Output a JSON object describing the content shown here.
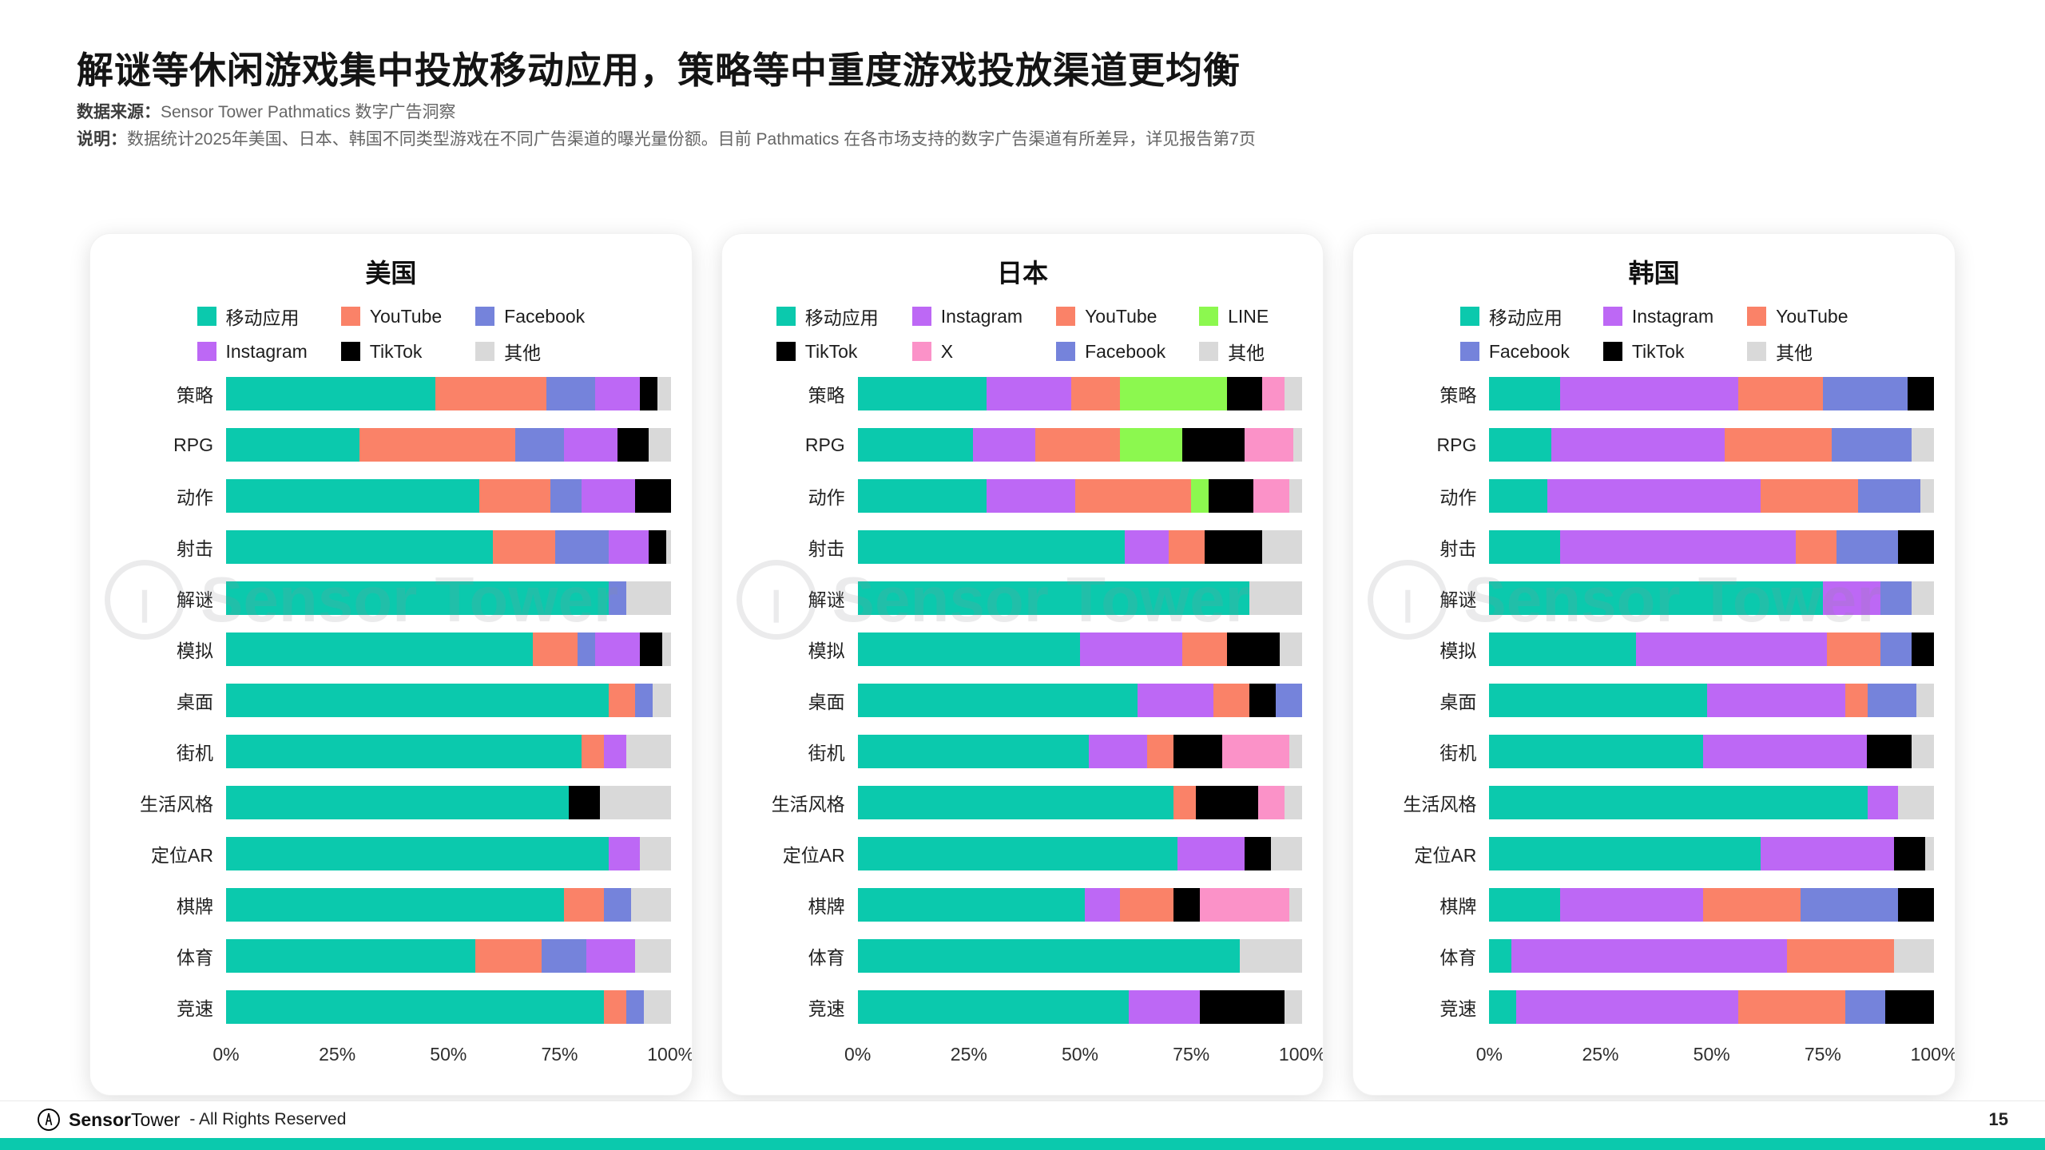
{
  "page": {
    "title": "解谜等休闲游戏集中投放移动应用，策略等中重度游戏投放渠道更均衡",
    "source_label": "数据来源：",
    "source_text": "Sensor Tower Pathmatics 数字广告洞察",
    "note_label": "说明：",
    "note_text": "数据统计2025年美国、日本、韩国不同类型游戏在不同广告渠道的曝光量份额。目前 Pathmatics 在各市场支持的数字广告渠道有所差异，详见报告第7页",
    "watermark": "Sensor Tower",
    "footer": {
      "brand_bold": "Sensor",
      "brand_light": "Tower",
      "rights": "- All Rights Reserved",
      "page_number": "15"
    }
  },
  "colors": {
    "accent_teal": "#0bc9ad",
    "移动应用": "#0bc9ad",
    "YouTube": "#fa8268",
    "Facebook": "#7583db",
    "Instagram": "#bd68f5",
    "TikTok": "#000000",
    "LINE": "#8cf84f",
    "X": "#fb92c8",
    "其他": "#d9d9d9"
  },
  "chart_data": [
    {
      "type": "bar",
      "orientation": "horizontal",
      "stacked": true,
      "title": "美国",
      "xlabel": "",
      "ylabel": "",
      "xlim": [
        0,
        100
      ],
      "x_ticks": [
        "0%",
        "25%",
        "50%",
        "75%",
        "100%"
      ],
      "legend_rows": [
        [
          "移动应用",
          "YouTube",
          "Facebook"
        ],
        [
          "Instagram",
          "TikTok",
          "其他"
        ]
      ],
      "categories": [
        "策略",
        "RPG",
        "动作",
        "射击",
        "解谜",
        "模拟",
        "桌面",
        "街机",
        "生活风格",
        "定位AR",
        "棋牌",
        "体育",
        "竞速"
      ],
      "series": [
        {
          "name": "移动应用",
          "color": "#0bc9ad",
          "values": [
            47,
            30,
            57,
            60,
            86,
            69,
            86,
            80,
            77,
            86,
            76,
            56,
            85
          ]
        },
        {
          "name": "YouTube",
          "color": "#fa8268",
          "values": [
            25,
            35,
            16,
            14,
            0,
            10,
            6,
            5,
            0,
            0,
            9,
            15,
            5
          ]
        },
        {
          "name": "Facebook",
          "color": "#7583db",
          "values": [
            11,
            11,
            7,
            12,
            4,
            4,
            4,
            0,
            0,
            0,
            6,
            10,
            4
          ]
        },
        {
          "name": "Instagram",
          "color": "#bd68f5",
          "values": [
            10,
            12,
            12,
            9,
            0,
            10,
            0,
            5,
            0,
            7,
            0,
            11,
            0
          ]
        },
        {
          "name": "TikTok",
          "color": "#000000",
          "values": [
            4,
            7,
            8,
            4,
            0,
            5,
            0,
            0,
            7,
            0,
            0,
            0,
            0
          ]
        },
        {
          "name": "其他",
          "color": "#d9d9d9",
          "values": [
            3,
            5,
            0,
            1,
            10,
            2,
            4,
            10,
            16,
            7,
            9,
            8,
            6
          ]
        }
      ]
    },
    {
      "type": "bar",
      "orientation": "horizontal",
      "stacked": true,
      "title": "日本",
      "xlabel": "",
      "ylabel": "",
      "xlim": [
        0,
        100
      ],
      "x_ticks": [
        "0%",
        "25%",
        "50%",
        "75%",
        "100%"
      ],
      "legend_rows": [
        [
          "移动应用",
          "Instagram",
          "YouTube",
          "LINE"
        ],
        [
          "TikTok",
          "X",
          "Facebook",
          "其他"
        ]
      ],
      "categories": [
        "策略",
        "RPG",
        "动作",
        "射击",
        "解谜",
        "模拟",
        "桌面",
        "街机",
        "生活风格",
        "定位AR",
        "棋牌",
        "体育",
        "竞速"
      ],
      "series": [
        {
          "name": "移动应用",
          "color": "#0bc9ad",
          "values": [
            29,
            26,
            29,
            60,
            88,
            50,
            63,
            52,
            71,
            72,
            51,
            86,
            61
          ]
        },
        {
          "name": "Instagram",
          "color": "#bd68f5",
          "values": [
            19,
            14,
            20,
            10,
            0,
            23,
            17,
            13,
            0,
            15,
            8,
            0,
            16
          ]
        },
        {
          "name": "YouTube",
          "color": "#fa8268",
          "values": [
            11,
            19,
            26,
            8,
            0,
            10,
            8,
            6,
            5,
            0,
            12,
            0,
            0
          ]
        },
        {
          "name": "LINE",
          "color": "#8cf84f",
          "values": [
            24,
            14,
            4,
            0,
            0,
            0,
            0,
            0,
            0,
            0,
            0,
            0,
            0
          ]
        },
        {
          "name": "TikTok",
          "color": "#000000",
          "values": [
            8,
            14,
            10,
            13,
            0,
            12,
            6,
            11,
            14,
            6,
            6,
            0,
            19
          ]
        },
        {
          "name": "X",
          "color": "#fb92c8",
          "values": [
            5,
            11,
            8,
            0,
            0,
            0,
            0,
            15,
            6,
            0,
            20,
            0,
            0
          ]
        },
        {
          "name": "Facebook",
          "color": "#7583db",
          "values": [
            0,
            0,
            0,
            0,
            0,
            0,
            6,
            0,
            0,
            0,
            0,
            0,
            0
          ]
        },
        {
          "name": "其他",
          "color": "#d9d9d9",
          "values": [
            4,
            2,
            3,
            9,
            12,
            5,
            0,
            3,
            4,
            7,
            3,
            14,
            4
          ]
        }
      ]
    },
    {
      "type": "bar",
      "orientation": "horizontal",
      "stacked": true,
      "title": "韩国",
      "xlabel": "",
      "ylabel": "",
      "xlim": [
        0,
        100
      ],
      "x_ticks": [
        "0%",
        "25%",
        "50%",
        "75%",
        "100%"
      ],
      "legend_rows": [
        [
          "移动应用",
          "Instagram",
          "YouTube"
        ],
        [
          "Facebook",
          "TikTok",
          "其他"
        ]
      ],
      "categories": [
        "策略",
        "RPG",
        "动作",
        "射击",
        "解谜",
        "模拟",
        "桌面",
        "街机",
        "生活风格",
        "定位AR",
        "棋牌",
        "体育",
        "竞速"
      ],
      "series": [
        {
          "name": "移动应用",
          "color": "#0bc9ad",
          "values": [
            16,
            14,
            13,
            16,
            75,
            33,
            49,
            48,
            85,
            61,
            16,
            5,
            6
          ]
        },
        {
          "name": "Instagram",
          "color": "#bd68f5",
          "values": [
            40,
            39,
            48,
            53,
            13,
            43,
            31,
            37,
            7,
            30,
            32,
            62,
            50
          ]
        },
        {
          "name": "YouTube",
          "color": "#fa8268",
          "values": [
            19,
            24,
            22,
            9,
            0,
            12,
            5,
            0,
            0,
            0,
            22,
            24,
            24
          ]
        },
        {
          "name": "Facebook",
          "color": "#7583db",
          "values": [
            19,
            18,
            14,
            14,
            7,
            7,
            11,
            0,
            0,
            0,
            22,
            0,
            9
          ]
        },
        {
          "name": "TikTok",
          "color": "#000000",
          "values": [
            6,
            0,
            0,
            8,
            0,
            5,
            0,
            10,
            0,
            7,
            8,
            0,
            11
          ]
        },
        {
          "name": "其他",
          "color": "#d9d9d9",
          "values": [
            0,
            5,
            3,
            0,
            5,
            0,
            4,
            5,
            8,
            2,
            0,
            9,
            0
          ]
        }
      ]
    }
  ]
}
